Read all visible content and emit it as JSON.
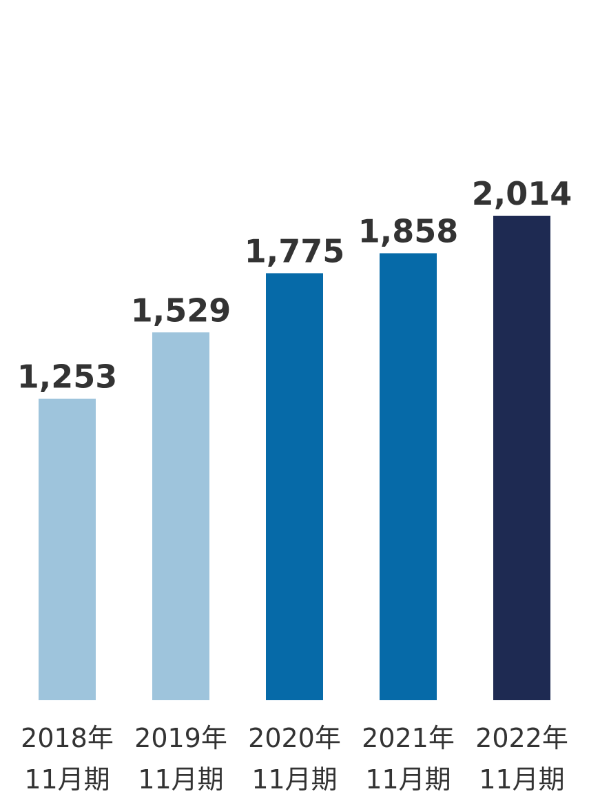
{
  "chart_data": {
    "type": "bar",
    "categories": [
      {
        "line1": "2018年",
        "line2": "11月期"
      },
      {
        "line1": "2019年",
        "line2": "11月期"
      },
      {
        "line1": "2020年",
        "line2": "11月期"
      },
      {
        "line1": "2021年",
        "line2": "11月期"
      },
      {
        "line1": "2022年",
        "line2": "11月期"
      }
    ],
    "values": [
      1253,
      1529,
      1775,
      1858,
      2014
    ],
    "value_labels": [
      "1,253",
      "1,529",
      "1,775",
      "1,858",
      "2,014"
    ],
    "colors": [
      "#9ec4dc",
      "#9ec4dc",
      "#066aa8",
      "#066aa8",
      "#1e2a52"
    ],
    "title": "",
    "xlabel": "",
    "ylabel": "",
    "ylim": [
      0,
      2014
    ],
    "grid": false,
    "legend": "none"
  }
}
